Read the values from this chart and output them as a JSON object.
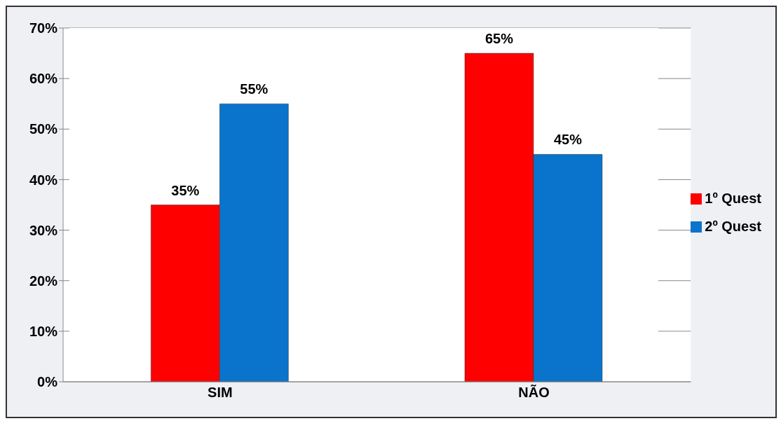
{
  "chart_data": {
    "type": "bar",
    "categories": [
      "SIM",
      "NÃO"
    ],
    "series": [
      {
        "name": "1º Quest",
        "color": "#ff0000",
        "values": [
          35,
          65
        ],
        "value_labels": [
          "35%",
          "65%"
        ]
      },
      {
        "name": "2º Quest",
        "color": "#0a74cc",
        "values": [
          55,
          45
        ],
        "value_labels": [
          "55%",
          "45%"
        ]
      }
    ],
    "ylim": [
      0,
      70
    ],
    "yticks": [
      {
        "value": 0,
        "label": "0%"
      },
      {
        "value": 10,
        "label": "10%"
      },
      {
        "value": 20,
        "label": "20%"
      },
      {
        "value": 30,
        "label": "30%"
      },
      {
        "value": 40,
        "label": "40%"
      },
      {
        "value": 50,
        "label": "50%"
      },
      {
        "value": 60,
        "label": "60%"
      },
      {
        "value": 70,
        "label": "70%"
      }
    ],
    "grid": "y",
    "legend": "right"
  }
}
